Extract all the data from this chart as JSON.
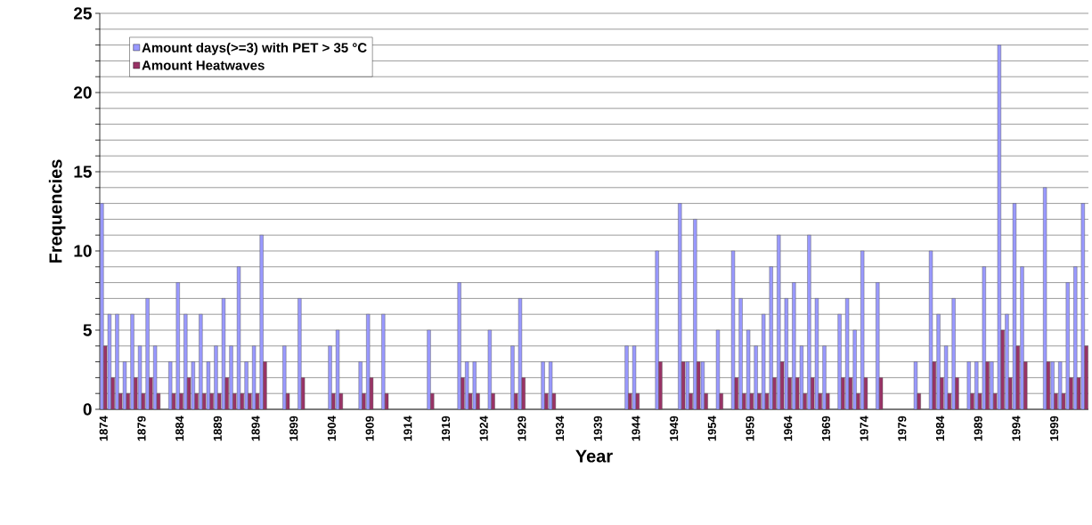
{
  "chart_data": {
    "type": "bar",
    "xlabel": "Year",
    "ylabel": "Frequencies",
    "categories": [
      "1874",
      null,
      null,
      null,
      null,
      "1879",
      null,
      null,
      null,
      null,
      "1884",
      null,
      null,
      null,
      null,
      "1889",
      null,
      null,
      null,
      null,
      "1894",
      null,
      null,
      null,
      null,
      "1899",
      null,
      null,
      null,
      null,
      "1904",
      null,
      null,
      null,
      null,
      "1909",
      null,
      null,
      null,
      null,
      "1914",
      null,
      null,
      null,
      null,
      "1919",
      null,
      null,
      null,
      null,
      "1924",
      null,
      null,
      null,
      null,
      "1929",
      null,
      null,
      null,
      null,
      "1934",
      null,
      null,
      null,
      null,
      "1939",
      null,
      null,
      null,
      null,
      "1944",
      null,
      null,
      null,
      null,
      "1949",
      null,
      null,
      null,
      null,
      "1954",
      null,
      null,
      null,
      null,
      "1959",
      null,
      null,
      null,
      null,
      "1964",
      null,
      null,
      null,
      null,
      "1969",
      null,
      null,
      null,
      null,
      "1974",
      null,
      null,
      null,
      null,
      "1979",
      null,
      null,
      null,
      null,
      "1984",
      null,
      null,
      null,
      null,
      "1989",
      null,
      null,
      null,
      null,
      "1994",
      null,
      null,
      null,
      null,
      "1999",
      null,
      null,
      null,
      null
    ],
    "series": [
      {
        "name": "Amount days(>=3) with PET > 35 °C",
        "color": "#9999ff",
        "values": [
          13,
          6,
          6,
          3,
          6,
          4,
          7,
          4,
          0,
          3,
          8,
          6,
          3,
          6,
          3,
          4,
          7,
          4,
          9,
          3,
          4,
          11,
          0,
          0,
          4,
          0,
          7,
          0,
          0,
          0,
          4,
          5,
          0,
          0,
          3,
          6,
          0,
          6,
          0,
          0,
          0,
          0,
          0,
          5,
          0,
          0,
          0,
          8,
          3,
          3,
          0,
          5,
          0,
          0,
          4,
          7,
          0,
          0,
          3,
          3,
          0,
          0,
          0,
          0,
          0,
          0,
          0,
          0,
          0,
          4,
          4,
          0,
          0,
          10,
          0,
          0,
          13,
          3,
          12,
          3,
          0,
          5,
          0,
          10,
          7,
          5,
          4,
          6,
          9,
          11,
          7,
          8,
          4,
          11,
          7,
          4,
          0,
          6,
          7,
          5,
          10,
          0,
          8,
          0,
          0,
          0,
          0,
          3,
          0,
          10,
          6,
          4,
          7,
          0,
          3,
          3,
          9,
          3,
          23,
          6,
          13,
          9,
          0,
          0,
          14,
          3,
          3,
          8,
          9,
          13
        ]
      },
      {
        "name": "Amount Heatwaves",
        "color": "#993366",
        "values": [
          4,
          2,
          1,
          1,
          2,
          1,
          2,
          1,
          0,
          1,
          1,
          2,
          1,
          1,
          1,
          1,
          2,
          1,
          1,
          1,
          1,
          3,
          0,
          0,
          1,
          0,
          2,
          0,
          0,
          0,
          1,
          1,
          0,
          0,
          1,
          2,
          0,
          1,
          0,
          0,
          0,
          0,
          0,
          1,
          0,
          0,
          0,
          2,
          1,
          1,
          0,
          1,
          0,
          0,
          1,
          2,
          0,
          0,
          1,
          1,
          0,
          0,
          0,
          0,
          0,
          0,
          0,
          0,
          0,
          1,
          1,
          0,
          0,
          3,
          0,
          0,
          3,
          1,
          3,
          1,
          0,
          1,
          0,
          2,
          1,
          1,
          1,
          1,
          2,
          3,
          2,
          2,
          1,
          2,
          1,
          1,
          0,
          2,
          2,
          1,
          2,
          0,
          2,
          0,
          0,
          0,
          0,
          1,
          0,
          3,
          2,
          1,
          2,
          0,
          1,
          1,
          3,
          1,
          5,
          2,
          4,
          3,
          0,
          0,
          3,
          1,
          1,
          2,
          2,
          4
        ]
      }
    ],
    "ylim": [
      0,
      25
    ],
    "yticks": [
      0,
      {
        "value": 1,
        "label": null
      },
      {
        "value": 2,
        "label": null
      },
      {
        "value": 3,
        "label": null
      },
      {
        "value": 4,
        "label": null
      },
      5,
      {
        "value": 6,
        "label": null
      },
      {
        "value": 7,
        "label": null
      },
      {
        "value": 8,
        "label": null
      },
      {
        "value": 9,
        "label": null
      },
      10,
      {
        "value": 11,
        "label": null
      },
      {
        "value": 12,
        "label": null
      },
      {
        "value": 13,
        "label": null
      },
      {
        "value": 14,
        "label": null
      },
      15,
      {
        "value": 16,
        "label": null
      },
      {
        "value": 17,
        "label": null
      },
      {
        "value": 18,
        "label": null
      },
      {
        "value": 19,
        "label": null
      },
      20,
      {
        "value": 21,
        "label": null
      },
      {
        "value": 22,
        "label": null
      },
      {
        "value": 23,
        "label": null
      },
      {
        "value": 24,
        "label": null
      },
      25
    ],
    "grid": "y",
    "legend": "top left"
  }
}
